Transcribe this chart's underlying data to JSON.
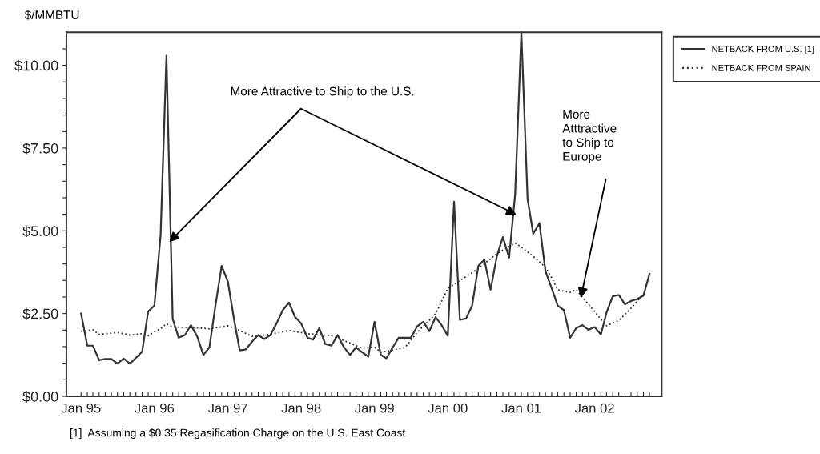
{
  "chart_data": {
    "type": "line",
    "ylabel": "$/MMBTU",
    "legend": "top right",
    "xlim": [
      "1994-10-20",
      "2002-12-01"
    ],
    "ylim": [
      0,
      11
    ],
    "yticks": [
      {
        "value": 0,
        "label": "$0.00"
      },
      {
        "value": 0.5,
        "label": null
      },
      {
        "value": 1,
        "label": null
      },
      {
        "value": 1.5,
        "label": null
      },
      {
        "value": 2,
        "label": null
      },
      {
        "value": 2.5,
        "label": "$2.50"
      },
      {
        "value": 3,
        "label": null
      },
      {
        "value": 3.5,
        "label": null
      },
      {
        "value": 4,
        "label": null
      },
      {
        "value": 4.5,
        "label": null
      },
      {
        "value": 5,
        "label": "$5.00"
      },
      {
        "value": 5.5,
        "label": null
      },
      {
        "value": 6,
        "label": null
      },
      {
        "value": 6.5,
        "label": null
      },
      {
        "value": 7,
        "label": null
      },
      {
        "value": 7.5,
        "label": "$7.50"
      },
      {
        "value": 8,
        "label": null
      },
      {
        "value": 8.5,
        "label": null
      },
      {
        "value": 9,
        "label": null
      },
      {
        "value": 9.5,
        "label": null
      },
      {
        "value": 10,
        "label": "$10.00"
      },
      {
        "value": 10.5,
        "label": null
      }
    ],
    "xticks": [
      {
        "value": "1995-01",
        "label": "Jan 95"
      },
      {
        "value": "1995-02",
        "label": null
      },
      {
        "value": "1995-03",
        "label": null
      },
      {
        "value": "1995-04",
        "label": null
      },
      {
        "value": "1995-05",
        "label": null
      },
      {
        "value": "1995-06",
        "label": null
      },
      {
        "value": "1995-07",
        "label": null
      },
      {
        "value": "1995-08",
        "label": null
      },
      {
        "value": "1995-09",
        "label": null
      },
      {
        "value": "1995-10",
        "label": null
      },
      {
        "value": "1995-11",
        "label": null
      },
      {
        "value": "1995-12",
        "label": null
      },
      {
        "value": "1996-01",
        "label": "Jan 96"
      },
      {
        "value": "1996-02",
        "label": null
      },
      {
        "value": "1996-03",
        "label": null
      },
      {
        "value": "1996-04",
        "label": null
      },
      {
        "value": "1996-05",
        "label": null
      },
      {
        "value": "1996-06",
        "label": null
      },
      {
        "value": "1996-07",
        "label": null
      },
      {
        "value": "1996-08",
        "label": null
      },
      {
        "value": "1996-09",
        "label": null
      },
      {
        "value": "1996-10",
        "label": null
      },
      {
        "value": "1996-11",
        "label": null
      },
      {
        "value": "1996-12",
        "label": null
      },
      {
        "value": "1997-01",
        "label": "Jan 97"
      },
      {
        "value": "1997-02",
        "label": null
      },
      {
        "value": "1997-03",
        "label": null
      },
      {
        "value": "1997-04",
        "label": null
      },
      {
        "value": "1997-05",
        "label": null
      },
      {
        "value": "1997-06",
        "label": null
      },
      {
        "value": "1997-07",
        "label": null
      },
      {
        "value": "1997-08",
        "label": null
      },
      {
        "value": "1997-09",
        "label": null
      },
      {
        "value": "1997-10",
        "label": null
      },
      {
        "value": "1997-11",
        "label": null
      },
      {
        "value": "1997-12",
        "label": null
      },
      {
        "value": "1998-01",
        "label": "Jan 98"
      },
      {
        "value": "1998-02",
        "label": null
      },
      {
        "value": "1998-03",
        "label": null
      },
      {
        "value": "1998-04",
        "label": null
      },
      {
        "value": "1998-05",
        "label": null
      },
      {
        "value": "1998-06",
        "label": null
      },
      {
        "value": "1998-07",
        "label": null
      },
      {
        "value": "1998-08",
        "label": null
      },
      {
        "value": "1998-09",
        "label": null
      },
      {
        "value": "1998-10",
        "label": null
      },
      {
        "value": "1998-11",
        "label": null
      },
      {
        "value": "1998-12",
        "label": null
      },
      {
        "value": "1999-01",
        "label": "Jan 99"
      },
      {
        "value": "1999-02",
        "label": null
      },
      {
        "value": "1999-03",
        "label": null
      },
      {
        "value": "1999-04",
        "label": null
      },
      {
        "value": "1999-05",
        "label": null
      },
      {
        "value": "1999-06",
        "label": null
      },
      {
        "value": "1999-07",
        "label": null
      },
      {
        "value": "1999-08",
        "label": null
      },
      {
        "value": "1999-09",
        "label": null
      },
      {
        "value": "1999-10",
        "label": null
      },
      {
        "value": "1999-11",
        "label": null
      },
      {
        "value": "1999-12",
        "label": null
      },
      {
        "value": "2000-01",
        "label": "Jan 00"
      },
      {
        "value": "2000-02",
        "label": null
      },
      {
        "value": "2000-03",
        "label": null
      },
      {
        "value": "2000-04",
        "label": null
      },
      {
        "value": "2000-05",
        "label": null
      },
      {
        "value": "2000-06",
        "label": null
      },
      {
        "value": "2000-07",
        "label": null
      },
      {
        "value": "2000-08",
        "label": null
      },
      {
        "value": "2000-09",
        "label": null
      },
      {
        "value": "2000-10",
        "label": null
      },
      {
        "value": "2000-11",
        "label": null
      },
      {
        "value": "2000-12",
        "label": null
      },
      {
        "value": "2001-01",
        "label": "Jan 01"
      },
      {
        "value": "2001-02",
        "label": null
      },
      {
        "value": "2001-03",
        "label": null
      },
      {
        "value": "2001-04",
        "label": null
      },
      {
        "value": "2001-05",
        "label": null
      },
      {
        "value": "2001-06",
        "label": null
      },
      {
        "value": "2001-07",
        "label": null
      },
      {
        "value": "2001-08",
        "label": null
      },
      {
        "value": "2001-09",
        "label": null
      },
      {
        "value": "2001-10",
        "label": null
      },
      {
        "value": "2001-11",
        "label": null
      },
      {
        "value": "2001-12",
        "label": null
      },
      {
        "value": "2002-01",
        "label": "Jan 02"
      },
      {
        "value": "2002-02",
        "label": null
      },
      {
        "value": "2002-03",
        "label": null
      },
      {
        "value": "2002-04",
        "label": null
      },
      {
        "value": "2002-05",
        "label": null
      },
      {
        "value": "2002-06",
        "label": null
      },
      {
        "value": "2002-07",
        "label": null
      },
      {
        "value": "2002-08",
        "label": null
      },
      {
        "value": "2002-09",
        "label": null
      },
      {
        "value": "2002-10",
        "label": null
      }
    ],
    "series": [
      {
        "name": "NETBACK FROM U.S. [1]",
        "color": "#333333",
        "line_style": "solid",
        "x": [
          "1995-01",
          "1995-02",
          "1995-03",
          "1995-04",
          "1995-05",
          "1995-06",
          "1995-07",
          "1995-08",
          "1995-09",
          "1995-10",
          "1995-11",
          "1995-12",
          "1996-01",
          "1996-02",
          "1996-03",
          "1996-04",
          "1996-05",
          "1996-06",
          "1996-07",
          "1996-08",
          "1996-09",
          "1996-10",
          "1996-11",
          "1996-12",
          "1997-01",
          "1997-02",
          "1997-03",
          "1997-04",
          "1997-05",
          "1997-06",
          "1997-07",
          "1997-08",
          "1997-09",
          "1997-10",
          "1997-11",
          "1997-12",
          "1998-01",
          "1998-02",
          "1998-03",
          "1998-04",
          "1998-05",
          "1998-06",
          "1998-07",
          "1998-08",
          "1998-09",
          "1998-10",
          "1998-11",
          "1998-12",
          "1999-01",
          "1999-02",
          "1999-03",
          "1999-04",
          "1999-05",
          "1999-06",
          "1999-07",
          "1999-08",
          "1999-09",
          "1999-10",
          "1999-11",
          "1999-12",
          "2000-01",
          "2000-02",
          "2000-03",
          "2000-04",
          "2000-05",
          "2000-06",
          "2000-07",
          "2000-08",
          "2000-09",
          "2000-10",
          "2000-11",
          "2000-12",
          "2001-01",
          "2001-02",
          "2001-03",
          "2001-04",
          "2001-05",
          "2001-06",
          "2001-07",
          "2001-08",
          "2001-09",
          "2001-10",
          "2001-11",
          "2001-12",
          "2002-01",
          "2002-02",
          "2002-03",
          "2002-04",
          "2002-05",
          "2002-06",
          "2002-07",
          "2002-08",
          "2002-09",
          "2002-10"
        ],
        "values": [
          2.5,
          1.53,
          1.53,
          1.09,
          1.13,
          1.13,
          0.99,
          1.14,
          0.99,
          1.16,
          1.35,
          2.56,
          2.74,
          4.87,
          10.29,
          2.34,
          1.77,
          1.85,
          2.15,
          1.81,
          1.25,
          1.48,
          2.78,
          3.94,
          3.46,
          2.31,
          1.39,
          1.42,
          1.65,
          1.85,
          1.73,
          1.85,
          2.21,
          2.6,
          2.83,
          2.4,
          2.2,
          1.77,
          1.71,
          2.06,
          1.58,
          1.53,
          1.85,
          1.49,
          1.25,
          1.48,
          1.33,
          1.2,
          2.25,
          1.25,
          1.15,
          1.47,
          1.77,
          1.77,
          1.77,
          2.11,
          2.25,
          1.97,
          2.39,
          2.15,
          1.83,
          5.88,
          2.31,
          2.35,
          2.74,
          3.94,
          4.13,
          3.22,
          4.23,
          4.81,
          4.19,
          6.1,
          11.0,
          5.96,
          4.91,
          5.23,
          3.78,
          3.26,
          2.74,
          2.6,
          1.77,
          2.06,
          2.15,
          2.01,
          2.09,
          1.87,
          2.53,
          3.02,
          3.06,
          2.78,
          2.88,
          2.94,
          3.04,
          3.7
        ]
      },
      {
        "name": "NETBACK FROM SPAIN",
        "color": "#333333",
        "line_style": "dotted",
        "x": [
          "1995-01",
          "1995-03",
          "1995-04",
          "1995-07",
          "1995-09",
          "1995-11",
          "1995-12",
          "1996-01",
          "1996-02",
          "1996-03",
          "1996-04",
          "1996-07",
          "1996-10",
          "1997-01",
          "1997-03",
          "1997-05",
          "1997-08",
          "1997-11",
          "1998-02",
          "1998-06",
          "1998-09",
          "1998-11",
          "1999-01",
          "1999-02",
          "1999-06",
          "1999-08",
          "1999-11",
          "2000-01",
          "2000-04",
          "2000-06",
          "2000-09",
          "2000-12",
          "2001-01",
          "2001-03",
          "2001-05",
          "2001-06",
          "2001-07",
          "2001-09",
          "2001-10",
          "2001-12",
          "2002-02",
          "2002-03",
          "2002-05",
          "2002-07",
          "2002-09"
        ],
        "values": [
          1.96,
          2.01,
          1.87,
          1.93,
          1.85,
          1.89,
          1.83,
          1.95,
          2.04,
          2.19,
          2.09,
          2.08,
          2.04,
          2.13,
          1.99,
          1.81,
          1.87,
          1.99,
          1.89,
          1.83,
          1.61,
          1.45,
          1.49,
          1.33,
          1.47,
          1.93,
          2.49,
          3.26,
          3.62,
          3.86,
          4.31,
          4.63,
          4.51,
          4.23,
          3.9,
          3.58,
          3.22,
          3.14,
          3.22,
          2.78,
          2.33,
          2.13,
          2.29,
          2.66,
          3.09
        ]
      }
    ],
    "annotations": [
      {
        "text": "More Attractive to Ship to the U.S.",
        "x": "1996-03-15",
        "y": 4.66
      },
      "More\nAtttractive\nto Ship to\nEurope",
      "[1]  Assuming a $0.35 Regasification Charge on the U.S. East Coast"
    ]
  }
}
